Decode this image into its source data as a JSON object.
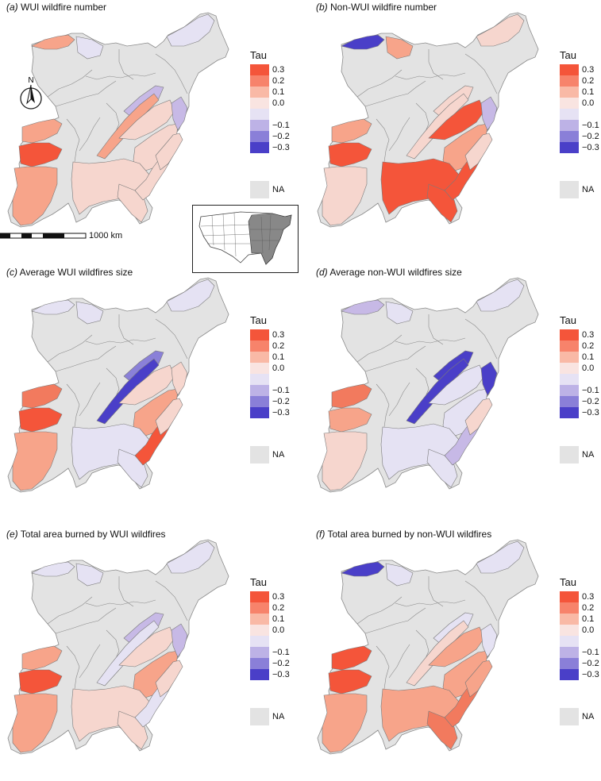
{
  "panels": [
    {
      "letter": "(a)",
      "title": "WUI wildfire number",
      "colors": [
        "#f7a48a",
        "#e5e2f3",
        "#e5e2f3",
        "#c7b9e6",
        "#f7a48a",
        "#f6d6ce",
        "#f6d6ce",
        "#c7b9e6",
        "#f6d6ce",
        "#f7a48a",
        "#f4553a",
        "#f7a48a",
        "#f6d6ce",
        "#f6d6ce",
        "#f6d6ce"
      ]
    },
    {
      "letter": "(b)",
      "title": "Non-WUI wildfire number",
      "colors": [
        "#4a3fc8",
        "#f7a48a",
        "#f6d6ce",
        "#f6d6ce",
        "#f6d6ce",
        "#f4553a",
        "#f7a48a",
        "#c7b9e6",
        "#f4553a",
        "#f7a48a",
        "#f4553a",
        "#f6d6ce",
        "#f4553a",
        "#f4553a",
        "#f6d6ce"
      ]
    },
    {
      "letter": "(c)",
      "title": "Average WUI wildfires size",
      "colors": [
        "#e5e2f3",
        "#e5e2f3",
        "#e5e2f3",
        "#8a80d8",
        "#4a3fc8",
        "#f6d6ce",
        "#f7a48a",
        "#f6d6ce",
        "#e5e2f3",
        "#f27a5e",
        "#f4553a",
        "#f7a48a",
        "#e5e2f3",
        "#f4553a",
        "#f6d6ce"
      ]
    },
    {
      "letter": "(d)",
      "title": "Average non-WUI wildfires size",
      "colors": [
        "#c7b9e6",
        "#e5e2f3",
        "#e5e2f3",
        "#4a3fc8",
        "#4a3fc8",
        "#e5e2f3",
        "#e5e2f3",
        "#4a3fc8",
        "#e5e2f3",
        "#f27a5e",
        "#f7a48a",
        "#f6d6ce",
        "#e5e2f3",
        "#c7b9e6",
        "#f6d6ce"
      ]
    },
    {
      "letter": "(e)",
      "title": "Total area burned by WUI wildfires",
      "colors": [
        "#e5e2f3",
        "#e5e2f3",
        "#e5e2f3",
        "#c7b9e6",
        "#e5e2f3",
        "#f6d6ce",
        "#f7a48a",
        "#c7b9e6",
        "#f6d6ce",
        "#f7a48a",
        "#f4553a",
        "#f7a48a",
        "#f6d6ce",
        "#e5e2f3",
        "#f6d6ce"
      ]
    },
    {
      "letter": "(f)",
      "title": "Total area burned by non-WUI wildfires",
      "colors": [
        "#4a3fc8",
        "#e5e2f3",
        "#e5e2f3",
        "#e5e2f3",
        "#f6d6ce",
        "#f7a48a",
        "#f7a48a",
        "#e5e2f3",
        "#f7a48a",
        "#f4553a",
        "#f4553a",
        "#f7a48a",
        "#f27a5e",
        "#f27a5e",
        "#f7a48a"
      ]
    }
  ],
  "legend": {
    "title": "Tau",
    "items": [
      {
        "label": "0.3",
        "color": "#f4553a"
      },
      {
        "label": "0.2",
        "color": "#f7836b"
      },
      {
        "label": "0.1",
        "color": "#f9b9a6"
      },
      {
        "label": "0.0",
        "color": "#f9e4e1"
      },
      {
        "label": "",
        "color": "#e6e2f4"
      },
      {
        "label": "−0.1",
        "color": "#bdb2e6"
      },
      {
        "label": "−0.2",
        "color": "#8a7fd8"
      },
      {
        "label": "−0.3",
        "color": "#4a3fc8"
      }
    ],
    "na_label": "NA",
    "na_color": "#e3e3e3"
  },
  "scale_bar": {
    "label": "1000 km"
  },
  "north_arrow": {
    "label": "N"
  },
  "colors": {
    "na": "#e3e3e3",
    "outline": "#8a8a8a"
  }
}
